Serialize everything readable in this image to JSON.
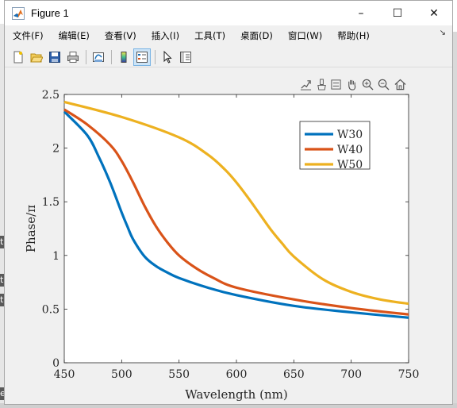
{
  "window": {
    "title": "Figure 1",
    "minimize_glyph": "–",
    "maximize_glyph": "☐",
    "close_glyph": "✕"
  },
  "menu": [
    "文件(F)",
    "编辑(E)",
    "查看(V)",
    "插入(I)",
    "工具(T)",
    "桌面(D)",
    "窗口(W)",
    "帮助(H)"
  ],
  "menu_overflow_glyph": "↘",
  "toolbar_icons": [
    "new-figure-icon",
    "open-file-icon",
    "save-icon",
    "print-icon",
    "link-plot-icon",
    "insert-colorbar-icon",
    "insert-legend-icon",
    "edit-plot-arrow-icon",
    "property-inspector-icon"
  ],
  "figure_tools": [
    "export-icon",
    "brush-icon",
    "data-tip-icon",
    "pan-hand-icon",
    "zoom-in-icon",
    "zoom-out-icon",
    "home-icon"
  ],
  "background_fragments": [
    "t",
    "t",
    "t",
    "e"
  ],
  "colors": {
    "accent": "#0072bd",
    "w40": "#d95319",
    "w50": "#edb120",
    "figure_bg": "#f0f0f0"
  },
  "chart_data": {
    "type": "line",
    "xlabel": "Wavelength (nm)",
    "ylabel": "Phase/π",
    "xlim": [
      450,
      750
    ],
    "ylim": [
      0,
      2.5
    ],
    "xticks": [
      450,
      500,
      550,
      600,
      650,
      700,
      750
    ],
    "yticks": [
      0,
      0.5,
      1,
      1.5,
      2,
      2.5
    ],
    "xtick_labels": [
      "450",
      "500",
      "550",
      "600",
      "650",
      "700",
      "750"
    ],
    "ytick_labels": [
      "0",
      "0.5",
      "1",
      "1.5",
      "2",
      "2.5"
    ],
    "grid": false,
    "legend_position": "top-right",
    "series": [
      {
        "name": "W30",
        "color": "#0072bd",
        "x": [
          450,
          470,
          480,
          490,
          500,
          505,
          510,
          520,
          530,
          540,
          550,
          575,
          600,
          650,
          700,
          750
        ],
        "y": [
          2.34,
          2.12,
          1.92,
          1.68,
          1.4,
          1.27,
          1.15,
          0.99,
          0.9,
          0.84,
          0.79,
          0.7,
          0.63,
          0.53,
          0.47,
          0.42
        ]
      },
      {
        "name": "W40",
        "color": "#d95319",
        "x": [
          450,
          470,
          490,
          500,
          510,
          520,
          530,
          540,
          550,
          565,
          580,
          600,
          650,
          700,
          750
        ],
        "y": [
          2.36,
          2.22,
          2.03,
          1.88,
          1.68,
          1.46,
          1.27,
          1.12,
          1.0,
          0.88,
          0.79,
          0.7,
          0.59,
          0.51,
          0.45
        ]
      },
      {
        "name": "W50",
        "color": "#edb120",
        "x": [
          450,
          500,
          550,
          575,
          590,
          600,
          610,
          620,
          630,
          640,
          650,
          675,
          700,
          725,
          750
        ],
        "y": [
          2.43,
          2.29,
          2.1,
          1.94,
          1.8,
          1.68,
          1.54,
          1.39,
          1.24,
          1.11,
          0.99,
          0.78,
          0.66,
          0.59,
          0.55
        ]
      }
    ]
  }
}
